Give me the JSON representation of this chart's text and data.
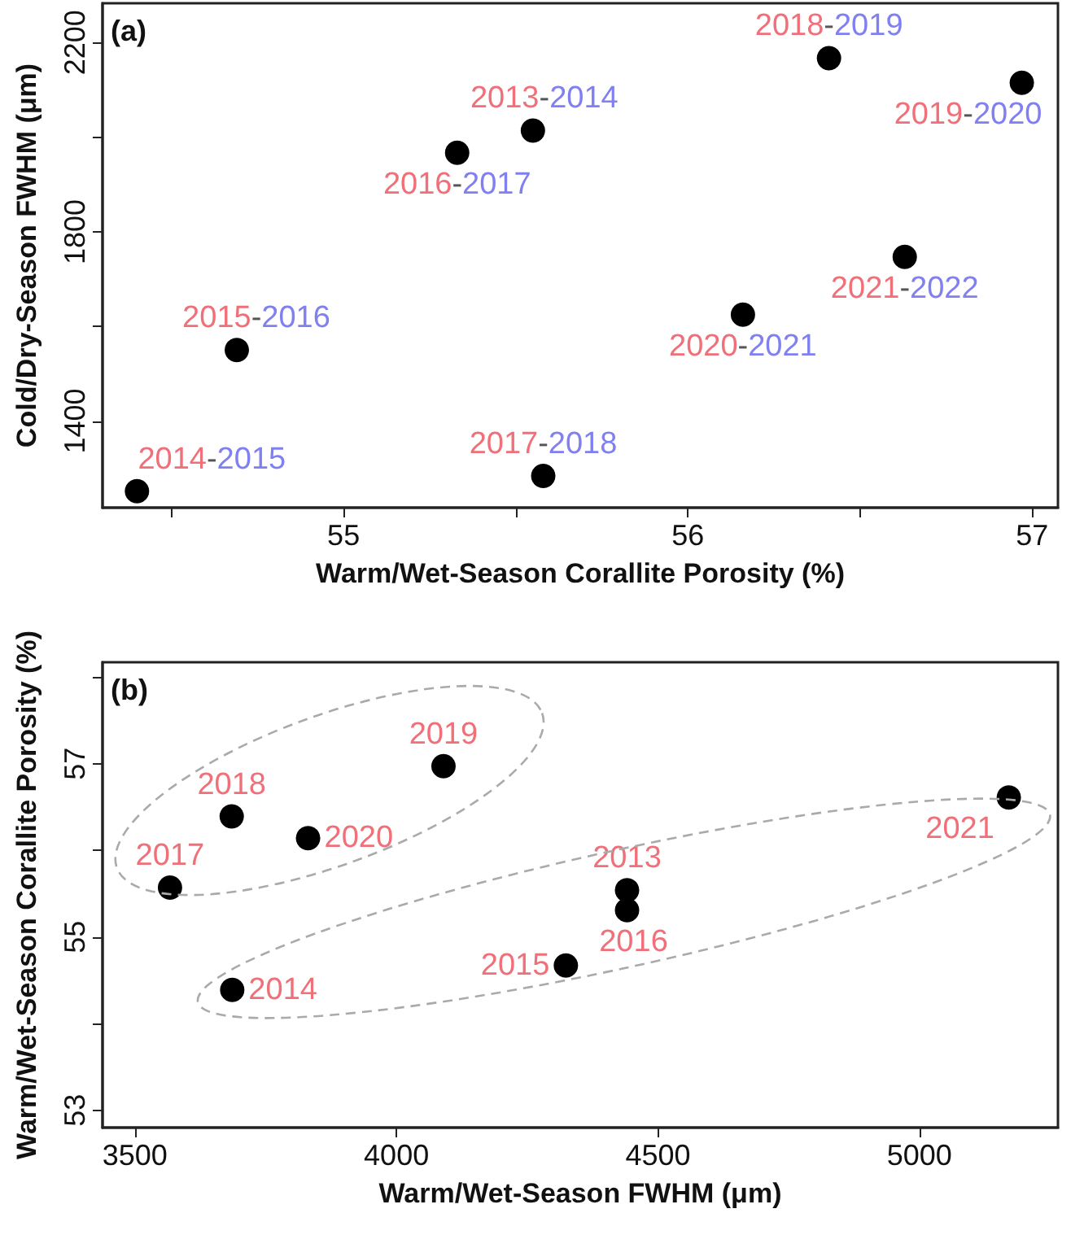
{
  "chart_data": [
    {
      "type": "scatter",
      "xlabel": "Warm/Wet-Season Corallite Porosity (%)",
      "ylabel": "Cold/Dry-Season FWHM (μm)",
      "annotations": [
        "(a)",
        {
          "text": "2014-2015",
          "x": 54.4,
          "y": 1252
        },
        {
          "text": "2015-2016",
          "x": 54.69,
          "y": 1550
        },
        {
          "text": "2016-2017",
          "x": 55.33,
          "y": 1967
        },
        {
          "text": "2013-2014",
          "x": 55.55,
          "y": 2014
        },
        {
          "text": "2017-2018",
          "x": 55.58,
          "y": 1284
        },
        {
          "text": "2020-2021",
          "x": 56.16,
          "y": 1625
        },
        {
          "text": "2018-2019",
          "x": 56.41,
          "y": 2167
        },
        {
          "text": "2021-2022",
          "x": 56.63,
          "y": 1747
        },
        {
          "text": "2019-2020",
          "x": 56.97,
          "y": 2115
        }
      ],
      "xlim": [
        54.3,
        57.075
      ],
      "ylim": [
        1217,
        2283
      ],
      "xticks": [
        {
          "value": 54.5,
          "label": null
        },
        55,
        {
          "value": 55.5,
          "label": null
        },
        56,
        {
          "value": 56.5,
          "label": null
        },
        57
      ],
      "yticks": [
        1400,
        {
          "value": 1600,
          "label": null
        },
        1800,
        {
          "value": 2000,
          "label": null
        },
        2200
      ],
      "grid": false,
      "marker": "circle",
      "series": [
        {
          "color": "#000000",
          "x": [
            54.4,
            54.69,
            55.33,
            55.55,
            55.58,
            56.16,
            56.41,
            56.63,
            56.97
          ],
          "values": [
            1252,
            1550,
            1967,
            2014,
            1284,
            1625,
            2167,
            1747,
            2115
          ]
        }
      ]
    },
    {
      "type": "scatter",
      "xlabel": "Warm/Wet-Season FWHM (μm)",
      "ylabel": "Warm/Wet-Season Corallite Porosity (%)",
      "annotations": [
        "(b)",
        {
          "text": "2017",
          "x": 3567,
          "y": 55.57
        },
        {
          "text": "2018",
          "x": 3685,
          "y": 56.39
        },
        {
          "text": "2020",
          "x": 3831,
          "y": 56.14
        },
        {
          "text": "2019",
          "x": 4090,
          "y": 56.97
        },
        {
          "text": "2014",
          "x": 3686,
          "y": 54.39
        },
        {
          "text": "2015",
          "x": 4324,
          "y": 54.67
        },
        {
          "text": "2013",
          "x": 4441,
          "y": 55.54
        },
        {
          "text": "2016",
          "x": 4441,
          "y": 55.31
        },
        {
          "text": "2021",
          "x": 5171,
          "y": 56.61
        }
      ],
      "xlim": [
        3438,
        5265
      ],
      "ylim": [
        52.8,
        58.17
      ],
      "xticks": [
        3500,
        4000,
        4500,
        5000
      ],
      "yticks": [
        53,
        {
          "value": 54,
          "label": null
        },
        55,
        {
          "value": 56,
          "label": null
        },
        57,
        {
          "value": 58,
          "label": null
        }
      ],
      "grid": false,
      "marker": "circle",
      "series": [
        {
          "color": "#000000",
          "x": [
            3567,
            3685,
            3831,
            4090,
            3686,
            4324,
            4441,
            4441,
            5171
          ],
          "values": [
            55.57,
            56.39,
            56.14,
            56.97,
            54.39,
            54.67,
            55.54,
            55.31,
            56.61
          ]
        }
      ]
    }
  ]
}
